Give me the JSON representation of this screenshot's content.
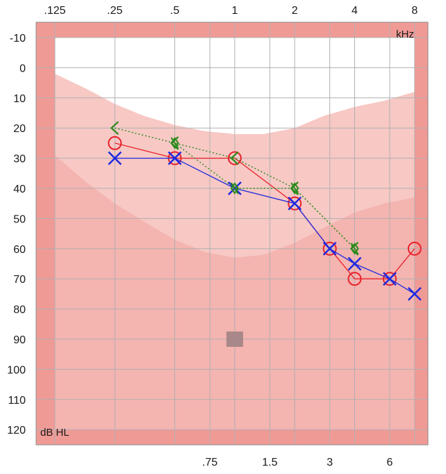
{
  "chart_data": {
    "type": "line",
    "title": "",
    "xlabel": "kHz",
    "ylabel": "dB HL",
    "ylim": [
      -10,
      120
    ],
    "y_inverted": true,
    "x_scale": "log",
    "grid": true,
    "top_ticks": [
      ".125",
      ".25",
      ".5",
      "1",
      "2",
      "4",
      "8"
    ],
    "bottom_ticks": [
      ".75",
      "1.5",
      "3",
      "6"
    ],
    "y_ticks": [
      "-10",
      "0",
      "10",
      "20",
      "30",
      "40",
      "50",
      "60",
      "70",
      "80",
      "90",
      "100",
      "110",
      "120"
    ],
    "series": [
      {
        "marker": "circle",
        "color": "#e8202a",
        "line_style": "solid",
        "x": [
          0.25,
          0.5,
          1,
          2,
          3,
          4,
          6,
          8
        ],
        "y": [
          25,
          30,
          30,
          45,
          60,
          70,
          70,
          60
        ]
      },
      {
        "marker": "x",
        "color": "#1e28e0",
        "line_style": "solid",
        "x": [
          0.25,
          0.5,
          1,
          2,
          3,
          4,
          6,
          8
        ],
        "y": [
          30,
          30,
          40,
          45,
          60,
          65,
          70,
          75
        ]
      },
      {
        "marker": "bracket",
        "color": "#2a8a1a",
        "line_style": "dotted",
        "x": [
          0.25,
          0.5,
          1,
          2,
          4
        ],
        "y": [
          20,
          25,
          30,
          40,
          60
        ]
      },
      {
        "marker": "diamond",
        "color": "#2a8a1a",
        "line_style": "dotted",
        "x": [
          0.5,
          1,
          2,
          4
        ],
        "y": [
          25,
          40,
          40,
          60
        ]
      }
    ],
    "annotations": [
      {
        "marker": "square",
        "color": "#a88888",
        "x": 1,
        "y": 90
      }
    ],
    "colors": {
      "outer_band": "#f09a96",
      "band_dark": "#f4b4b0",
      "band_mid": "#f7c8c4",
      "band_light": "#fadbd8",
      "band_top": "#ffffff",
      "grid": "#b0b0b0"
    }
  }
}
